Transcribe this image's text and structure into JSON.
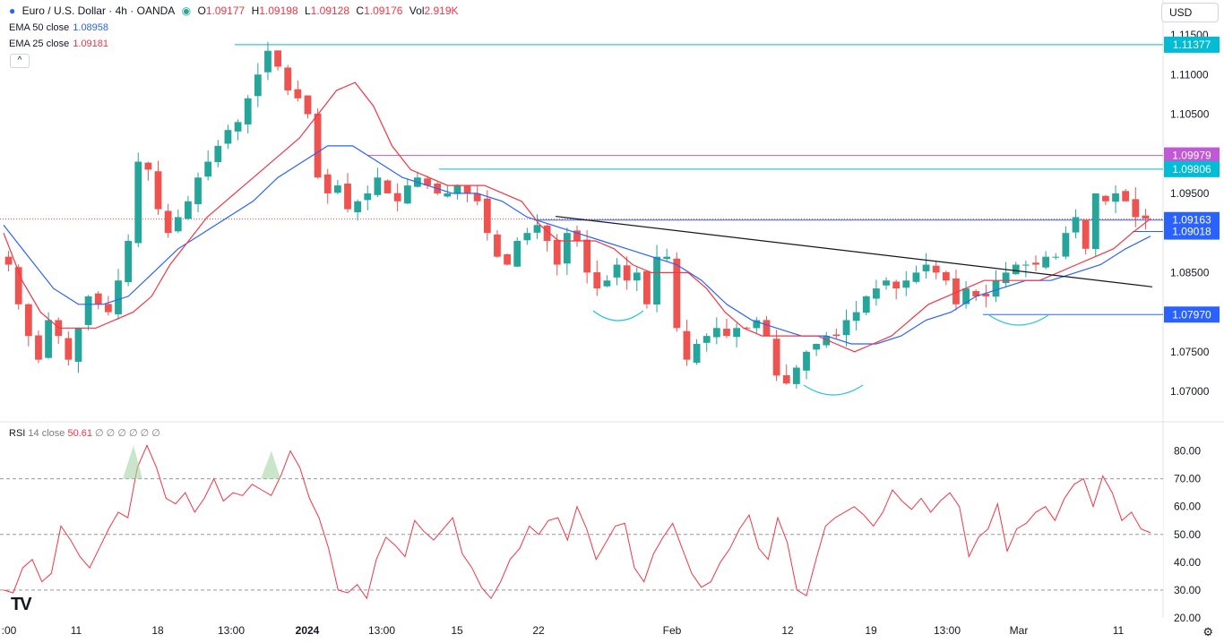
{
  "header": {
    "symbol": "Euro / U.S. Dollar · 4h · OANDA",
    "o_label": "O",
    "o_value": "1.09177",
    "h_label": "H",
    "h_value": "1.09198",
    "l_label": "L",
    "l_value": "1.09128",
    "c_label": "C",
    "c_value": "1.09176",
    "vol_label": "Vol",
    "vol_value": "2.919K",
    "ema50_label": "EMA 50 close",
    "ema50_value": "1.08958",
    "ema25_label": "EMA 25 close",
    "ema25_value": "1.09181",
    "toggle": "^",
    "currency": "USD"
  },
  "colors": {
    "up": "#26a69a",
    "down": "#ef5350",
    "ema25": "#f23645",
    "ema50": "#2962ff",
    "rsi": "#f23645",
    "trend": "#131722",
    "cyan": "#00bcd4",
    "magenta": "#c258d6",
    "blue_label": "#2962ff"
  },
  "chart_data": {
    "type": "candlestick",
    "price_axis": {
      "ylim": [
        1.0665,
        1.1167
      ],
      "ticks": [
        "1.11500",
        "1.11000",
        "1.10500",
        "1.09500",
        "1.08500",
        "1.07500",
        "1.07000"
      ]
    },
    "x_ticks": [
      ":00",
      "11",
      "18",
      "13:00",
      "2024",
      "13:00",
      "15",
      "22",
      "Feb",
      "12",
      "19",
      "13:00",
      "Mar",
      "11"
    ],
    "levels": [
      {
        "label": "1.11377",
        "color": "cyan"
      },
      {
        "label": "1.09979",
        "color": "magenta"
      },
      {
        "label": "1.09806",
        "color": "cyan"
      },
      {
        "label": "1.09163",
        "color": "blue"
      },
      {
        "label": "1.09018",
        "color": "blue"
      },
      {
        "label": "1.07970",
        "color": "blue"
      }
    ],
    "close_path": [
      1.086,
      1.081,
      1.077,
      1.074,
      1.079,
      1.077,
      1.074,
      1.078,
      1.082,
      1.081,
      1.08,
      1.084,
      1.089,
      1.099,
      1.098,
      1.093,
      1.09,
      1.092,
      1.094,
      1.097,
      1.099,
      1.101,
      1.103,
      1.104,
      1.107,
      1.11,
      1.113,
      1.111,
      1.108,
      1.107,
      1.105,
      1.097,
      1.095,
      1.096,
      1.093,
      1.094,
      1.095,
      1.097,
      1.095,
      1.094,
      1.096,
      1.097,
      1.096,
      1.095,
      1.095,
      1.096,
      1.095,
      1.094,
      1.09,
      1.087,
      1.086,
      1.089,
      1.09,
      1.091,
      1.089,
      1.086,
      1.09,
      1.089,
      1.085,
      1.083,
      1.084,
      1.086,
      1.084,
      1.085,
      1.081,
      1.087,
      1.087,
      1.078,
      1.074,
      1.076,
      1.077,
      1.078,
      1.077,
      1.078,
      1.078,
      1.079,
      1.077,
      1.072,
      1.071,
      1.073,
      1.075,
      1.076,
      1.077,
      1.077,
      1.079,
      1.08,
      1.082,
      1.083,
      1.084,
      1.083,
      1.084,
      1.085,
      1.086,
      1.085,
      1.084,
      1.081,
      1.083,
      1.082,
      1.082,
      1.084,
      1.085,
      1.086,
      1.086,
      1.086,
      1.087,
      1.087,
      1.09,
      1.092,
      1.088,
      1.095,
      1.094,
      1.095,
      1.094,
      1.092,
      1.0918
    ],
    "ema25_path": [
      1.09,
      1.084,
      1.08,
      1.078,
      1.078,
      1.078,
      1.079,
      1.08,
      1.082,
      1.086,
      1.089,
      1.092,
      1.094,
      1.096,
      1.098,
      1.1,
      1.102,
      1.105,
      1.108,
      1.109,
      1.106,
      1.101,
      1.098,
      1.097,
      1.096,
      1.096,
      1.096,
      1.095,
      1.094,
      1.091,
      1.089,
      1.089,
      1.089,
      1.088,
      1.086,
      1.085,
      1.085,
      1.085,
      1.083,
      1.08,
      1.078,
      1.077,
      1.077,
      1.077,
      1.077,
      1.076,
      1.075,
      1.076,
      1.077,
      1.079,
      1.081,
      1.082,
      1.083,
      1.084,
      1.084,
      1.084,
      1.084,
      1.085,
      1.086,
      1.087,
      1.088,
      1.09,
      1.0918
    ],
    "ema50_path": [
      1.091,
      1.087,
      1.083,
      1.081,
      1.081,
      1.082,
      1.085,
      1.088,
      1.09,
      1.092,
      1.094,
      1.097,
      1.099,
      1.101,
      1.101,
      1.099,
      1.097,
      1.096,
      1.095,
      1.095,
      1.094,
      1.092,
      1.091,
      1.09,
      1.089,
      1.088,
      1.087,
      1.086,
      1.084,
      1.081,
      1.079,
      1.078,
      1.077,
      1.077,
      1.076,
      1.076,
      1.077,
      1.079,
      1.08,
      1.082,
      1.083,
      1.084,
      1.084,
      1.085,
      1.086,
      1.088,
      1.0896
    ],
    "rsi": {
      "label": "RSI",
      "settings": "14 close",
      "value": "50.61",
      "dots": "∅ ∅ ∅ ∅ ∅ ∅",
      "ylim": [
        20,
        85
      ],
      "ticks": [
        "80.00",
        "70.00",
        "60.00",
        "50.00",
        "40.00",
        "30.00",
        "20.00"
      ],
      "series": [
        30,
        29,
        38,
        41,
        33,
        36,
        53,
        48,
        42,
        38,
        45,
        52,
        58,
        56,
        74,
        82,
        74,
        63,
        61,
        65,
        58,
        63,
        70,
        62,
        65,
        64,
        68,
        66,
        64,
        71,
        80,
        74,
        63,
        56,
        45,
        30,
        29,
        32,
        27,
        41,
        49,
        46,
        42,
        55,
        51,
        48,
        52,
        56,
        43,
        38,
        31,
        27,
        33,
        41,
        45,
        53,
        50,
        55,
        56,
        48,
        60,
        52,
        41,
        47,
        53,
        54,
        38,
        33,
        43,
        49,
        54,
        45,
        36,
        31,
        33,
        40,
        45,
        52,
        57,
        45,
        41,
        56,
        47,
        30,
        28,
        41,
        53,
        56,
        58,
        60,
        57,
        53,
        58,
        66,
        62,
        59,
        63,
        58,
        62,
        65,
        60,
        42,
        49,
        52,
        61,
        44,
        52,
        54,
        58,
        60,
        55,
        63,
        68,
        70,
        60,
        71,
        65,
        55,
        58,
        52,
        50.6
      ]
    }
  }
}
